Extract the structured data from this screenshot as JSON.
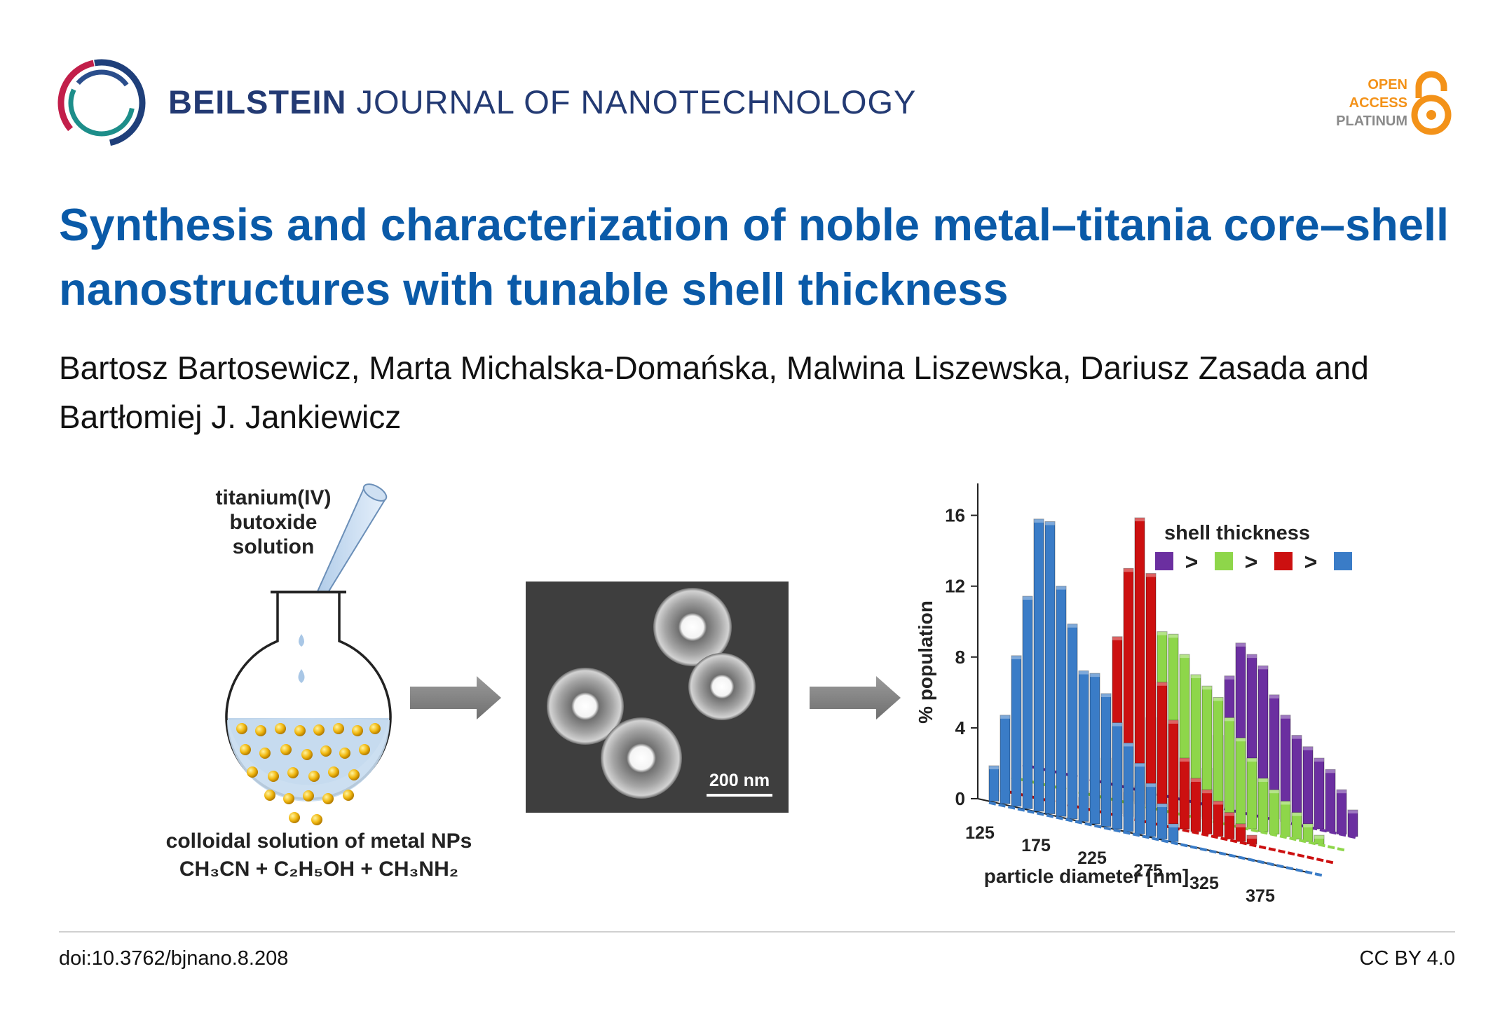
{
  "header": {
    "journal_brand": "BEILSTEIN",
    "journal_rest": "JOURNAL OF NANOTECHNOLOGY",
    "oa_line1": "OPEN",
    "oa_line2": "ACCESS",
    "oa_line3": "PLATINUM"
  },
  "article": {
    "title": "Synthesis and characterization of noble metal–titania core–shell nanostructures with tunable shell thickness",
    "authors": "Bartosz Bartosewicz, Marta Michalska-Domańska, Malwina Liszewska, Dariusz Zasada and Bartłomiej J. Jankiewicz"
  },
  "graphic": {
    "pipette_label": [
      "titanium(IV)",
      "butoxide",
      "solution"
    ],
    "flask_caption_line1": "colloidal solution of metal NPs",
    "flask_caption_line2": "CH₃CN + C₂H₅OH + CH₃NH₂",
    "sem_scale": "200 nm"
  },
  "chart_data": {
    "type": "bar",
    "title": "",
    "ylabel": "% population",
    "xlabel": "particle diameter [nm]",
    "ylim": [
      0,
      18
    ],
    "yticks": [
      0,
      4,
      8,
      12,
      16
    ],
    "xticks": [
      125,
      175,
      225,
      275,
      325,
      375
    ],
    "legend_title": "shell thickness",
    "legend_separator": ">",
    "x": [
      130,
      140,
      150,
      160,
      170,
      180,
      190,
      200,
      210,
      220,
      230,
      240,
      250,
      260,
      270,
      280,
      290,
      300,
      310,
      320,
      330,
      340,
      350,
      360,
      370,
      380,
      390,
      400,
      410,
      420
    ],
    "series": [
      {
        "name": "purple",
        "color": "#6b2fa0",
        "values": [
          0,
          0,
          0,
          0,
          0,
          0,
          0,
          0,
          0,
          0,
          0,
          0,
          0,
          0,
          0.5,
          1,
          2,
          4,
          7.5,
          9.5,
          9,
          8.5,
          7,
          6,
          5,
          4.5,
          4,
          3.5,
          2.5,
          1.5
        ]
      },
      {
        "name": "green",
        "color": "#8ed64a",
        "values": [
          0,
          0,
          0,
          0,
          0,
          0,
          0,
          0,
          0,
          0,
          0.5,
          1,
          5,
          10,
          10,
          9,
          8,
          7.5,
          7,
          6,
          5,
          4,
          3,
          2.5,
          2,
          1.5,
          1,
          0.5,
          0,
          0
        ]
      },
      {
        "name": "red",
        "color": "#cc1010",
        "values": [
          0,
          0,
          0,
          0,
          0,
          0,
          0,
          0.5,
          1,
          3,
          10,
          14,
          17,
          14,
          8,
          6,
          4,
          3,
          2.5,
          2,
          1.5,
          1,
          0.5,
          0,
          0,
          0,
          0,
          0,
          0,
          0
        ]
      },
      {
        "name": "blue",
        "color": "#3a7cc7",
        "values": [
          2,
          5,
          8.5,
          12,
          16.5,
          16.5,
          13,
          11,
          8.5,
          8.5,
          7.5,
          6,
          5,
          4,
          3,
          2,
          1,
          0,
          0,
          0,
          0,
          0,
          0,
          0,
          0,
          0,
          0,
          0,
          0,
          0
        ]
      }
    ]
  },
  "footer": {
    "doi": "doi:10.3762/bjnano.8.208",
    "license": "CC BY 4.0"
  },
  "colors": {
    "journal_navy": "#233a73",
    "title_blue": "#0a5aa8",
    "oa_orange": "#f39219"
  }
}
